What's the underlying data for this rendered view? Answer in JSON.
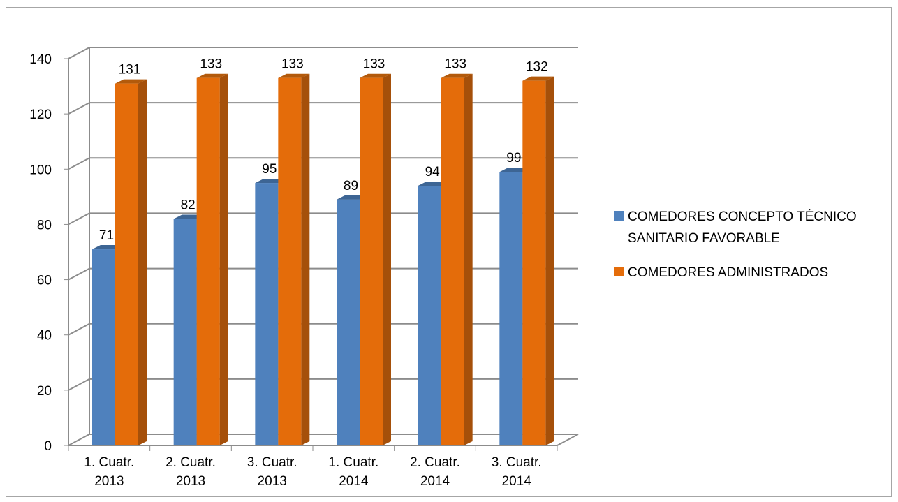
{
  "chart_data": {
    "type": "bar",
    "categories": [
      [
        "1. Cuatr.",
        "2013"
      ],
      [
        "2. Cuatr.",
        "2013"
      ],
      [
        "3. Cuatr.",
        "2013"
      ],
      [
        "1. Cuatr.",
        "2014"
      ],
      [
        "2. Cuatr.",
        "2014"
      ],
      [
        "3. Cuatr.",
        "2014"
      ]
    ],
    "series": [
      {
        "name": [
          "COMEDORES CONCEPTO TÉCNICO",
          "SANITARIO FAVORABLE"
        ],
        "values": [
          71,
          82,
          95,
          89,
          94,
          99
        ],
        "color": "#4f81bd",
        "side_color": "#385d8a",
        "top_color": "#3d6594"
      },
      {
        "name": [
          "COMEDORES ADMINISTRADOS"
        ],
        "values": [
          131,
          133,
          133,
          133,
          133,
          132
        ],
        "color": "#e46c0a",
        "side_color": "#a5500a",
        "top_color": "#b35a0b"
      }
    ],
    "yticks": [
      "0",
      "20",
      "40",
      "60",
      "80",
      "100",
      "120",
      "140"
    ],
    "ylim": [
      0,
      140
    ],
    "data_labels": true,
    "legend_position": "right",
    "grid": true,
    "style": "3d-clustered-column"
  }
}
